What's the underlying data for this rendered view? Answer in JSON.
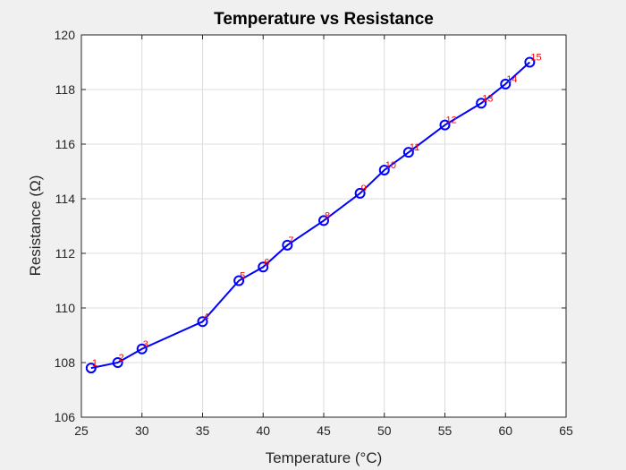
{
  "chart_data": {
    "type": "line",
    "title": "Temperature vs Resistance",
    "xlabel": "Temperature (°C)",
    "ylabel": "Resistance (Ω)",
    "xlim": [
      25,
      65
    ],
    "ylim": [
      106,
      120
    ],
    "xticks": [
      25,
      30,
      35,
      40,
      45,
      50,
      55,
      60,
      65
    ],
    "yticks": [
      106,
      108,
      110,
      112,
      114,
      116,
      118,
      120
    ],
    "grid": true,
    "series": [
      {
        "x": [
          25.8,
          28,
          30,
          35,
          38,
          40,
          42,
          45,
          48,
          50,
          52,
          55,
          58,
          60,
          62
        ],
        "y": [
          107.8,
          108.0,
          108.5,
          109.5,
          111.0,
          111.5,
          112.3,
          113.2,
          114.2,
          115.05,
          115.7,
          116.7,
          117.5,
          118.2,
          119.0
        ],
        "color": "#0000ff",
        "marker": "circle",
        "point_labels": [
          "1",
          "2",
          "3",
          "4",
          "5",
          "6",
          "7",
          "8",
          "9",
          "10",
          "11",
          "12",
          "13",
          "14",
          "15"
        ],
        "point_label_color": "#ff0000"
      }
    ]
  }
}
